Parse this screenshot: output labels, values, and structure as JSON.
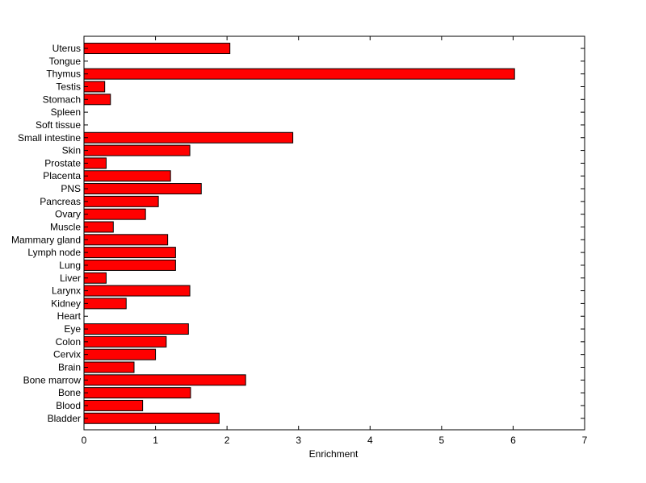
{
  "chart_data": {
    "type": "bar",
    "orientation": "horizontal",
    "title": "",
    "xlabel": "Enrichment",
    "ylabel": "",
    "xlim": [
      0,
      7
    ],
    "xticks": [
      0,
      1,
      2,
      3,
      4,
      5,
      6,
      7
    ],
    "grid": false,
    "bar_color": "#ff0000",
    "bar_edge_color": "#000000",
    "categories": [
      "Uterus",
      "Tongue",
      "Thymus",
      "Testis",
      "Stomach",
      "Spleen",
      "Soft tissue",
      "Small intestine",
      "Skin",
      "Prostate",
      "Placenta",
      "PNS",
      "Pancreas",
      "Ovary",
      "Muscle",
      "Mammary gland",
      "Lymph node",
      "Lung",
      "Liver",
      "Larynx",
      "Kidney",
      "Heart",
      "Eye",
      "Colon",
      "Cervix",
      "Brain",
      "Bone marrow",
      "Bone",
      "Blood",
      "Bladder"
    ],
    "values": [
      2.04,
      0,
      6.02,
      0.29,
      0.37,
      0,
      0,
      2.92,
      1.48,
      0.31,
      1.21,
      1.64,
      1.04,
      0.86,
      0.41,
      1.17,
      1.28,
      1.28,
      0.31,
      1.48,
      0.59,
      0,
      1.46,
      1.15,
      1.0,
      0.7,
      2.26,
      1.49,
      0.82,
      1.89
    ]
  }
}
